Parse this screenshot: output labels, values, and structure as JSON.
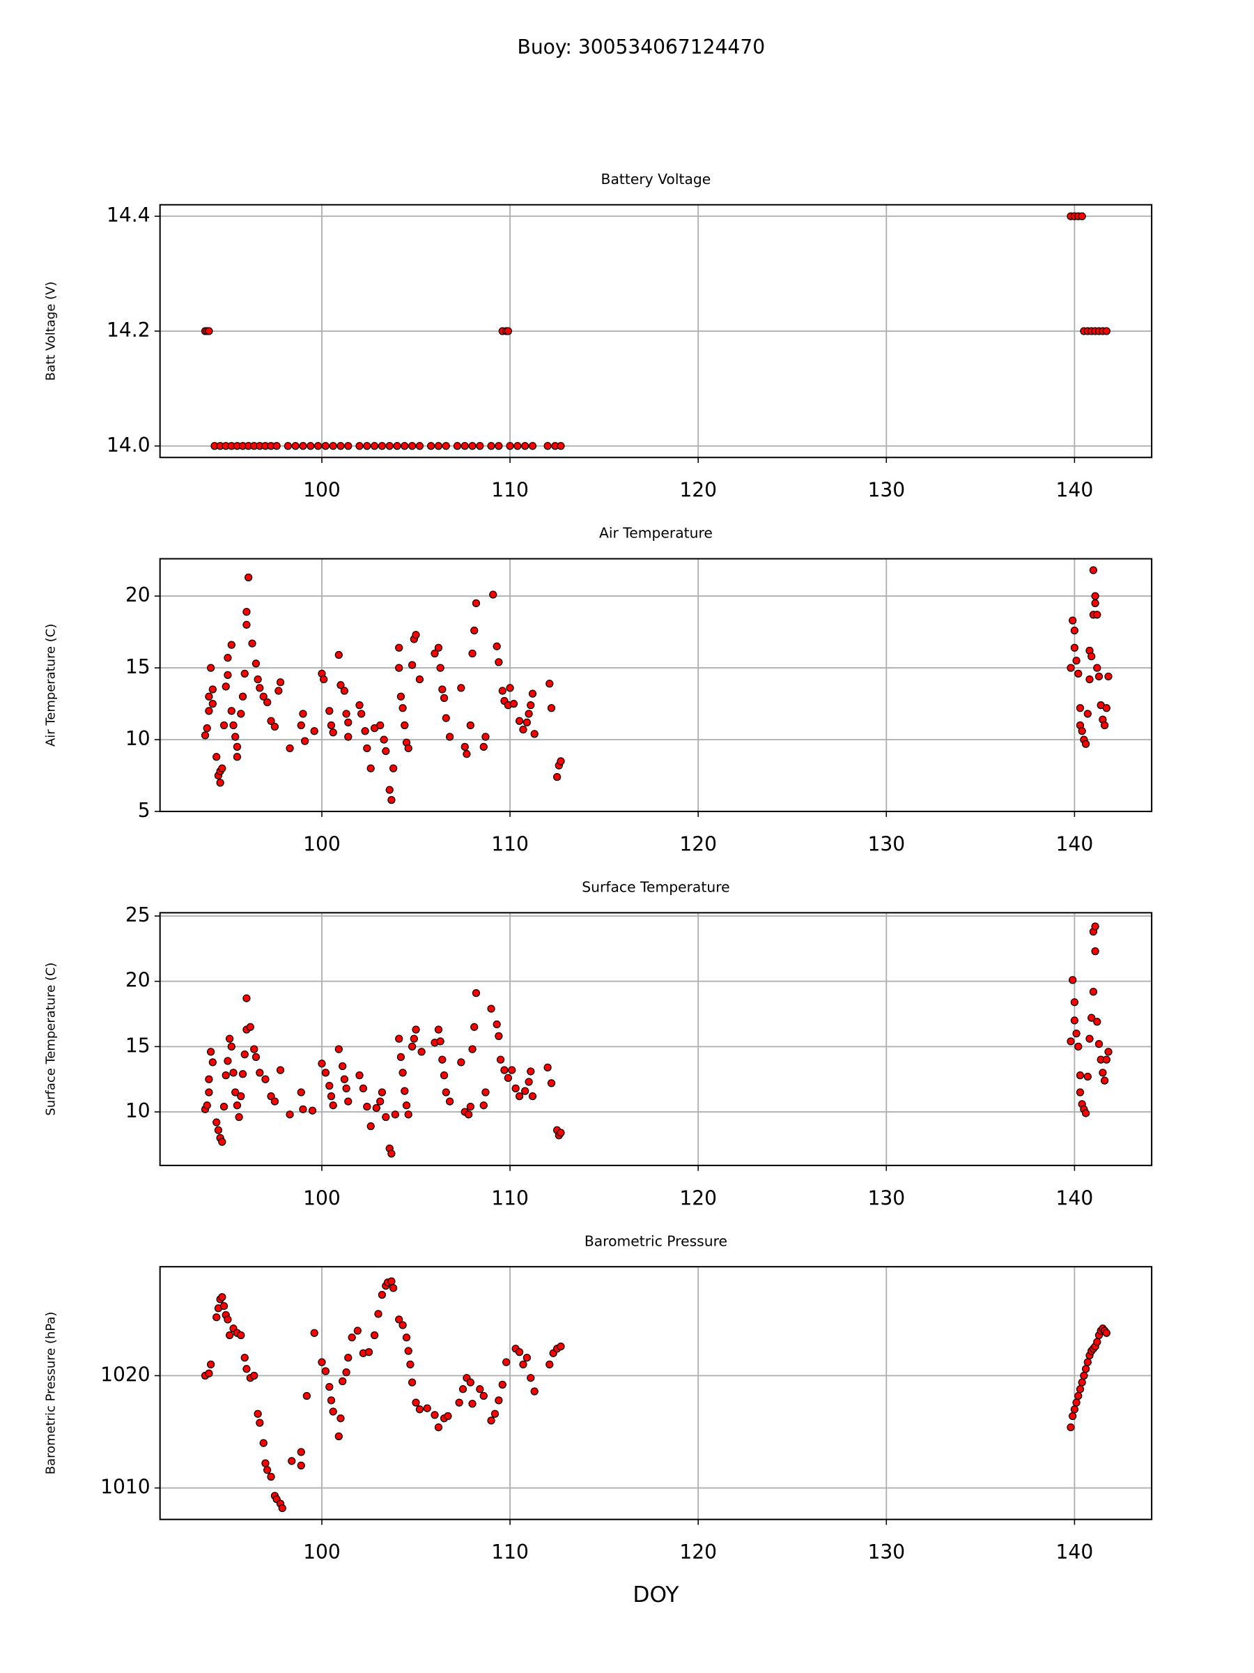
{
  "title": "Buoy: 300534067124470",
  "chart_data": [
    {
      "type": "scatter",
      "title": "Battery Voltage",
      "y_label": "Batt Voltage (V)",
      "color": "red",
      "grid": true,
      "xlim": [
        91.4,
        144.1
      ],
      "xticks": [
        100,
        110,
        120,
        130,
        140
      ],
      "ylim": [
        13.98,
        14.42
      ],
      "yticks": [
        {
          "value": 14,
          "label": "14.0"
        },
        14.2,
        14.4
      ],
      "x": [
        93.8,
        93.9,
        94.0,
        94.3,
        94.6,
        94.9,
        95.2,
        95.5,
        95.8,
        96.1,
        96.4,
        96.7,
        97.0,
        97.3,
        97.6,
        98.2,
        98.6,
        99.0,
        99.4,
        99.8,
        100.2,
        100.6,
        101.0,
        101.4,
        102.0,
        102.4,
        102.8,
        103.2,
        103.6,
        104.0,
        104.4,
        104.8,
        105.2,
        105.8,
        106.2,
        106.6,
        107.2,
        107.6,
        108.0,
        108.4,
        109.0,
        109.4,
        110.0,
        110.4,
        110.8,
        111.2,
        112.0,
        112.4,
        112.7,
        109.6,
        109.8,
        109.9,
        139.8,
        140.0,
        140.2,
        140.4,
        140.5,
        140.7,
        140.9,
        141.1,
        141.3,
        141.5,
        141.7
      ],
      "values": [
        14.2,
        14.2,
        14.2,
        14,
        14,
        14,
        14,
        14,
        14,
        14,
        14,
        14,
        14,
        14,
        14,
        14,
        14,
        14,
        14,
        14,
        14,
        14,
        14,
        14,
        14,
        14,
        14,
        14,
        14,
        14,
        14,
        14,
        14,
        14,
        14,
        14,
        14,
        14,
        14,
        14,
        14,
        14,
        14,
        14,
        14,
        14,
        14,
        14,
        14,
        14.2,
        14.2,
        14.2,
        14.4,
        14.4,
        14.4,
        14.4,
        14.2,
        14.2,
        14.2,
        14.2,
        14.2,
        14.2,
        14.2
      ]
    },
    {
      "type": "scatter",
      "title": "Air Temperature",
      "y_label": "Air Temperature (C)",
      "color": "red",
      "grid": true,
      "xlim": [
        91.4,
        144.1
      ],
      "xticks": [
        100,
        110,
        120,
        130,
        140
      ],
      "ylim": [
        5,
        22.6
      ],
      "yticks": [
        5,
        10,
        15,
        20
      ],
      "x": [
        93.8,
        93.9,
        94.0,
        94.0,
        94.1,
        94.2,
        94.2,
        94.4,
        94.5,
        94.6,
        94.6,
        94.7,
        94.8,
        94.9,
        95.0,
        95.0,
        95.2,
        95.2,
        95.3,
        95.4,
        95.5,
        95.5,
        95.7,
        95.8,
        95.9,
        96.0,
        96.0,
        96.1,
        96.3,
        96.5,
        96.6,
        96.7,
        96.9,
        97.1,
        97.3,
        97.5,
        97.7,
        97.8,
        98.3,
        98.9,
        99.0,
        99.1,
        99.6,
        100.0,
        100.1,
        100.4,
        100.5,
        100.6,
        100.9,
        101.0,
        101.2,
        101.3,
        101.4,
        101.4,
        102.0,
        102.1,
        102.3,
        102.4,
        102.6,
        102.8,
        103.1,
        103.3,
        103.4,
        103.6,
        103.7,
        103.8,
        104.1,
        104.1,
        104.2,
        104.3,
        104.4,
        104.5,
        104.6,
        104.8,
        104.9,
        105.0,
        105.2,
        106.0,
        106.2,
        106.3,
        106.4,
        106.5,
        106.6,
        106.8,
        107.4,
        107.6,
        107.7,
        107.9,
        108.0,
        108.1,
        108.2,
        108.6,
        108.7,
        109.1,
        109.3,
        109.4,
        109.6,
        109.7,
        109.9,
        110.0,
        110.2,
        110.5,
        110.7,
        110.9,
        111.0,
        111.1,
        111.2,
        111.3,
        112.1,
        112.2,
        112.5,
        112.6,
        112.7,
        139.8,
        139.9,
        140.0,
        140.0,
        140.1,
        140.2,
        140.3,
        140.3,
        140.4,
        140.5,
        140.6,
        140.7,
        140.8,
        140.8,
        140.9,
        141.0,
        141.0,
        141.1,
        141.1,
        141.2,
        141.2,
        141.3,
        141.4,
        141.5,
        141.6,
        141.7,
        141.8
      ],
      "values": [
        10.3,
        10.8,
        12.0,
        13.0,
        15.0,
        13.5,
        12.5,
        8.8,
        7.5,
        7.0,
        7.8,
        8.0,
        11.0,
        13.7,
        14.5,
        15.7,
        16.6,
        12.0,
        11.0,
        10.2,
        9.5,
        8.8,
        11.8,
        13.0,
        14.6,
        18.0,
        18.9,
        21.3,
        16.7,
        15.3,
        14.2,
        13.6,
        13.0,
        12.6,
        11.3,
        10.9,
        13.4,
        14.0,
        9.4,
        11.0,
        11.8,
        9.9,
        10.6,
        14.6,
        14.2,
        12.0,
        11.0,
        10.5,
        15.9,
        13.8,
        13.4,
        11.8,
        11.2,
        10.2,
        12.4,
        11.8,
        10.6,
        9.4,
        8.0,
        10.8,
        11.0,
        10.0,
        9.2,
        6.5,
        5.8,
        8.0,
        16.4,
        15.0,
        13.0,
        12.2,
        11.0,
        9.8,
        9.4,
        15.2,
        17.0,
        17.3,
        14.2,
        16.0,
        16.4,
        15.0,
        13.5,
        12.9,
        11.5,
        10.2,
        13.6,
        9.5,
        9.0,
        11.0,
        16.0,
        17.6,
        19.5,
        9.5,
        10.2,
        20.1,
        16.5,
        15.4,
        13.4,
        12.7,
        12.4,
        13.6,
        12.5,
        11.3,
        10.7,
        11.2,
        11.8,
        12.4,
        13.2,
        10.4,
        13.9,
        12.2,
        7.4,
        8.2,
        8.5,
        15.0,
        18.3,
        17.6,
        16.4,
        15.5,
        14.6,
        12.2,
        11.0,
        10.6,
        10.0,
        9.7,
        11.8,
        14.2,
        16.2,
        15.8,
        18.7,
        21.8,
        19.5,
        20.0,
        18.7,
        15.0,
        14.4,
        12.4,
        11.4,
        11.0,
        12.2,
        14.4
      ]
    },
    {
      "type": "scatter",
      "title": "Surface Temperature",
      "y_label": "Surface Temperature (C)",
      "color": "red",
      "grid": true,
      "xlim": [
        91.4,
        144.1
      ],
      "xticks": [
        100,
        110,
        120,
        130,
        140
      ],
      "ylim": [
        5.9,
        25.25
      ],
      "yticks": [
        10,
        15,
        20,
        25
      ],
      "x": [
        93.8,
        93.9,
        94.0,
        94.0,
        94.1,
        94.2,
        94.4,
        94.5,
        94.6,
        94.7,
        94.8,
        94.9,
        95.0,
        95.1,
        95.2,
        95.3,
        95.4,
        95.5,
        95.6,
        95.7,
        95.8,
        95.9,
        96.0,
        96.0,
        96.2,
        96.4,
        96.5,
        96.7,
        97.0,
        97.3,
        97.5,
        97.8,
        98.3,
        98.9,
        99.0,
        99.5,
        100.0,
        100.2,
        100.4,
        100.5,
        100.6,
        100.9,
        101.1,
        101.2,
        101.3,
        101.4,
        102.0,
        102.2,
        102.4,
        102.6,
        102.9,
        103.1,
        103.2,
        103.4,
        103.6,
        103.7,
        103.9,
        104.1,
        104.2,
        104.3,
        104.4,
        104.5,
        104.6,
        104.8,
        104.9,
        105.0,
        105.3,
        106.0,
        106.2,
        106.3,
        106.4,
        106.5,
        106.6,
        106.8,
        107.4,
        107.6,
        107.8,
        107.9,
        108.0,
        108.1,
        108.2,
        108.6,
        108.7,
        109.0,
        109.3,
        109.4,
        109.5,
        109.7,
        109.9,
        110.1,
        110.3,
        110.5,
        110.8,
        111.0,
        111.1,
        111.2,
        112.0,
        112.2,
        112.5,
        112.6,
        112.7,
        139.8,
        139.9,
        140.0,
        140.0,
        140.1,
        140.2,
        140.3,
        140.3,
        140.4,
        140.5,
        140.6,
        140.7,
        140.8,
        140.9,
        141.0,
        141.0,
        141.1,
        141.1,
        141.2,
        141.3,
        141.4,
        141.5,
        141.6,
        141.7,
        141.8
      ],
      "values": [
        10.2,
        10.5,
        11.5,
        12.5,
        14.6,
        13.8,
        9.2,
        8.6,
        8.0,
        7.7,
        10.4,
        12.8,
        13.9,
        15.6,
        15.0,
        13.0,
        11.5,
        10.5,
        9.6,
        11.2,
        12.9,
        14.4,
        16.3,
        18.7,
        16.5,
        14.8,
        14.2,
        13.0,
        12.5,
        11.2,
        10.8,
        13.2,
        9.8,
        11.5,
        10.2,
        10.1,
        13.7,
        13.0,
        12.0,
        11.2,
        10.5,
        14.8,
        13.5,
        12.5,
        11.8,
        10.8,
        12.8,
        11.8,
        10.4,
        8.9,
        10.3,
        10.8,
        11.5,
        9.6,
        7.2,
        6.8,
        9.8,
        15.6,
        14.2,
        13.0,
        11.6,
        10.5,
        9.8,
        15.0,
        15.6,
        16.3,
        14.6,
        15.3,
        16.3,
        15.4,
        14.0,
        12.8,
        11.5,
        10.8,
        13.8,
        10.0,
        9.8,
        10.4,
        14.8,
        16.5,
        19.1,
        10.5,
        11.5,
        17.9,
        16.7,
        15.8,
        14.0,
        13.2,
        12.6,
        13.2,
        11.8,
        11.2,
        11.6,
        12.3,
        13.1,
        11.2,
        13.4,
        12.2,
        8.6,
        8.2,
        8.4,
        15.4,
        20.1,
        18.4,
        17.0,
        16.0,
        15.0,
        12.8,
        11.5,
        10.6,
        10.2,
        9.9,
        12.7,
        15.6,
        17.2,
        19.2,
        23.8,
        24.2,
        22.3,
        16.9,
        15.2,
        14.0,
        13.0,
        12.4,
        14.0,
        14.6
      ]
    },
    {
      "type": "scatter",
      "title": "Barometric Pressure",
      "y_label": "Barometric Pressure (hPa)",
      "x_label": "DOY",
      "color": "red",
      "grid": true,
      "xlim": [
        91.4,
        144.1
      ],
      "xticks": [
        100,
        110,
        120,
        130,
        140
      ],
      "ylim": [
        1007.2,
        1029.7
      ],
      "yticks": [
        1010,
        1020
      ],
      "x": [
        93.8,
        94.0,
        94.1,
        94.4,
        94.5,
        94.6,
        94.7,
        94.8,
        94.9,
        95.0,
        95.1,
        95.3,
        95.5,
        95.7,
        95.9,
        96.0,
        96.2,
        96.4,
        96.6,
        96.7,
        96.9,
        97.0,
        97.1,
        97.3,
        97.5,
        97.6,
        97.8,
        97.9,
        98.4,
        98.9,
        98.9,
        99.2,
        99.6,
        100.0,
        100.2,
        100.4,
        100.5,
        100.6,
        100.9,
        101.0,
        101.1,
        101.3,
        101.4,
        101.6,
        101.9,
        102.2,
        102.5,
        102.8,
        103.0,
        103.2,
        103.4,
        103.5,
        103.7,
        103.8,
        104.1,
        104.3,
        104.5,
        104.6,
        104.7,
        104.8,
        105.0,
        105.2,
        105.6,
        106.0,
        106.2,
        106.5,
        106.7,
        107.3,
        107.5,
        107.7,
        107.9,
        108.0,
        108.4,
        108.6,
        109.0,
        109.2,
        109.4,
        109.6,
        109.8,
        110.3,
        110.5,
        110.7,
        110.9,
        111.1,
        111.3,
        112.1,
        112.3,
        112.5,
        112.7,
        139.8,
        139.9,
        140.0,
        140.1,
        140.2,
        140.3,
        140.4,
        140.5,
        140.6,
        140.7,
        140.8,
        140.9,
        141.0,
        141.1,
        141.2,
        141.3,
        141.4,
        141.5,
        141.6,
        141.7
      ],
      "values": [
        1020.0,
        1020.2,
        1021.0,
        1025.2,
        1026.0,
        1026.8,
        1027.0,
        1026.2,
        1025.4,
        1025.0,
        1023.6,
        1024.2,
        1023.8,
        1023.6,
        1021.6,
        1020.6,
        1019.8,
        1020.0,
        1016.6,
        1015.8,
        1014.0,
        1012.2,
        1011.6,
        1011.0,
        1009.3,
        1009.0,
        1008.6,
        1008.2,
        1012.4,
        1013.2,
        1012.0,
        1018.2,
        1023.8,
        1021.2,
        1020.4,
        1019.0,
        1017.8,
        1016.8,
        1014.6,
        1016.2,
        1019.5,
        1020.3,
        1021.6,
        1023.4,
        1024.0,
        1022.0,
        1022.1,
        1023.6,
        1025.5,
        1027.2,
        1028.0,
        1028.3,
        1028.4,
        1027.8,
        1025.0,
        1024.5,
        1023.4,
        1022.2,
        1021.0,
        1019.4,
        1017.6,
        1017.0,
        1017.1,
        1016.5,
        1015.4,
        1016.2,
        1016.4,
        1017.6,
        1018.8,
        1019.8,
        1019.4,
        1017.5,
        1018.8,
        1018.2,
        1016.0,
        1016.6,
        1017.8,
        1019.2,
        1021.2,
        1022.4,
        1022.1,
        1021.0,
        1021.6,
        1019.8,
        1018.6,
        1021.0,
        1022.0,
        1022.4,
        1022.6,
        1015.4,
        1016.4,
        1017.0,
        1017.6,
        1018.2,
        1018.8,
        1019.4,
        1020.0,
        1020.6,
        1021.2,
        1021.8,
        1022.2,
        1022.4,
        1022.6,
        1023.0,
        1023.6,
        1024.0,
        1024.2,
        1024.0,
        1023.8
      ]
    }
  ]
}
